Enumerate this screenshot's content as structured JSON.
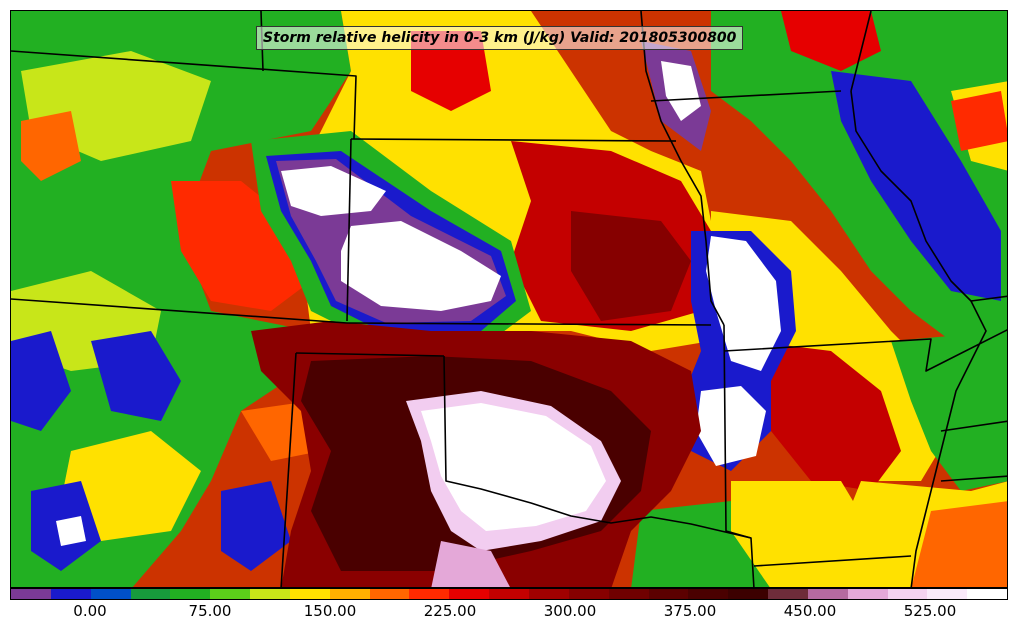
{
  "title": "Storm relative helicity in 0-3 km (J/kg) Valid: 201805300800",
  "colorbar": {
    "colors": [
      "#7b3a96",
      "#1a1acc",
      "#0050c8",
      "#179a3c",
      "#22b022",
      "#5ccf1a",
      "#c8e619",
      "#ffe100",
      "#ffb000",
      "#ff6600",
      "#ff2a00",
      "#e60000",
      "#c40000",
      "#a00000",
      "#860000",
      "#700000",
      "#5c0000",
      "#4a0000",
      "#3c0000",
      "#6e2c3a",
      "#b56aa0",
      "#e4a8d8",
      "#f4d2f0",
      "#faeafa",
      "#ffffff"
    ],
    "labels": [
      "0.00",
      "75.00",
      "150.00",
      "225.00",
      "300.00",
      "375.00",
      "450.00",
      "525.00"
    ]
  },
  "map": {
    "colors": {
      "very_high": "#ffffff",
      "high": "#f2cdf0",
      "extreme_dark": "#4a0000",
      "dark_red": "#8a0000",
      "red": "#e60000",
      "orange": "#ff6600",
      "yellow": "#ffe100",
      "yellow_green": "#c8e619",
      "green": "#22b022",
      "dark_green": "#179a3c",
      "blue": "#1a1acc",
      "purple": "#7b3a96",
      "boundary": "#000000"
    }
  }
}
